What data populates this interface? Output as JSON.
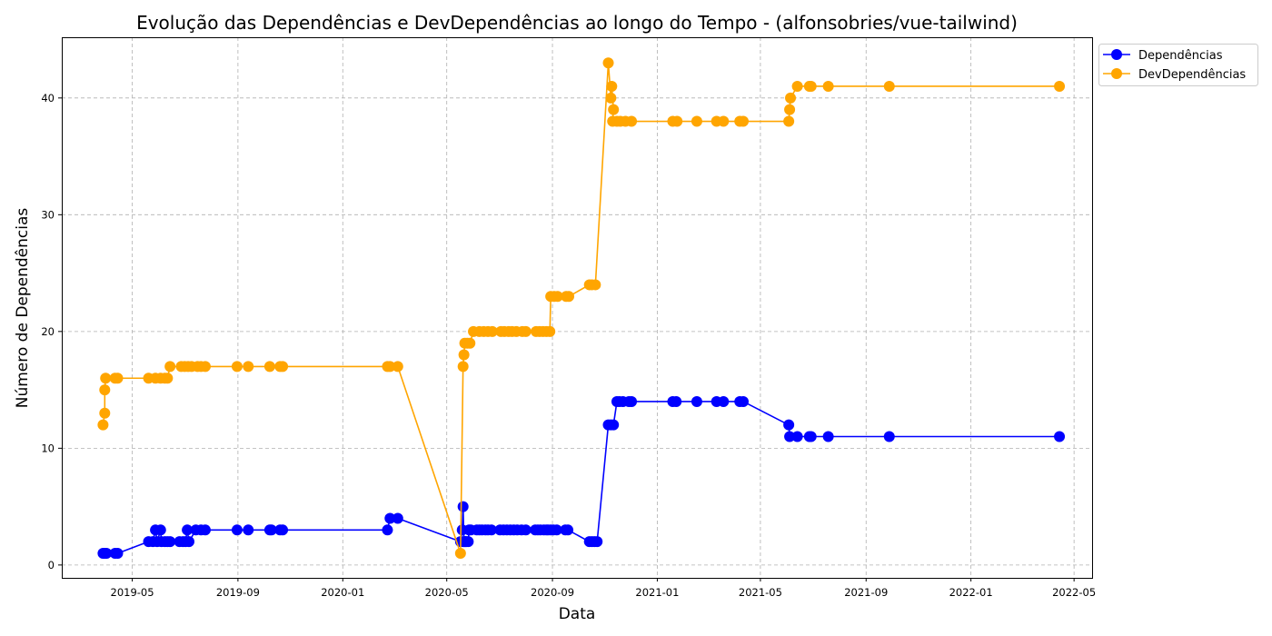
{
  "chart_data": {
    "type": "line",
    "title": "Evolução das Dependências e DevDependências ao longo do Tempo - (alfonsobries/vue-tailwind)",
    "xlabel": "Data",
    "ylabel": "Número de Dependências",
    "xlim": [
      "2019-02-08",
      "2022-05-22"
    ],
    "ylim": [
      -1.1,
      45.2
    ],
    "x_ticks": [
      "2019-05",
      "2019-09",
      "2020-01",
      "2020-05",
      "2020-09",
      "2021-01",
      "2021-05",
      "2021-09",
      "2022-01",
      "2022-05"
    ],
    "y_ticks": [
      0,
      10,
      20,
      30,
      40
    ],
    "grid": true,
    "legend": "outside-top-right",
    "series": [
      {
        "name": "Dependências",
        "color": "#0000ff",
        "points": [
          [
            "2019-03-28",
            1
          ],
          [
            "2019-03-30",
            1
          ],
          [
            "2019-04-01",
            1
          ],
          [
            "2019-04-11",
            1
          ],
          [
            "2019-04-14",
            1
          ],
          [
            "2019-05-20",
            2
          ],
          [
            "2019-05-25",
            2
          ],
          [
            "2019-05-28",
            3
          ],
          [
            "2019-05-30",
            2
          ],
          [
            "2019-06-03",
            3
          ],
          [
            "2019-06-04",
            2
          ],
          [
            "2019-06-08",
            2
          ],
          [
            "2019-06-11",
            2
          ],
          [
            "2019-06-14",
            2
          ],
          [
            "2019-06-25",
            2
          ],
          [
            "2019-06-29",
            2
          ],
          [
            "2019-07-02",
            2
          ],
          [
            "2019-07-04",
            3
          ],
          [
            "2019-07-06",
            2
          ],
          [
            "2019-07-14",
            3
          ],
          [
            "2019-07-20",
            3
          ],
          [
            "2019-07-25",
            3
          ],
          [
            "2019-08-31",
            3
          ],
          [
            "2019-09-13",
            3
          ],
          [
            "2019-10-08",
            3
          ],
          [
            "2019-10-10",
            3
          ],
          [
            "2019-10-20",
            3
          ],
          [
            "2019-10-23",
            3
          ],
          [
            "2020-02-22",
            3
          ],
          [
            "2020-02-25",
            4
          ],
          [
            "2020-03-05",
            4
          ],
          [
            "2020-05-17",
            2
          ],
          [
            "2020-05-19",
            3
          ],
          [
            "2020-05-20",
            5
          ],
          [
            "2020-05-21",
            2
          ],
          [
            "2020-05-22",
            2
          ],
          [
            "2020-05-23",
            2
          ],
          [
            "2020-05-24",
            2
          ],
          [
            "2020-05-26",
            2
          ],
          [
            "2020-05-27",
            3
          ],
          [
            "2020-05-29",
            3
          ],
          [
            "2020-06-05",
            3
          ],
          [
            "2020-06-08",
            3
          ],
          [
            "2020-06-11",
            3
          ],
          [
            "2020-06-15",
            3
          ],
          [
            "2020-06-18",
            3
          ],
          [
            "2020-06-22",
            3
          ],
          [
            "2020-07-02",
            3
          ],
          [
            "2020-07-06",
            3
          ],
          [
            "2020-07-10",
            3
          ],
          [
            "2020-07-14",
            3
          ],
          [
            "2020-07-18",
            3
          ],
          [
            "2020-07-22",
            3
          ],
          [
            "2020-07-27",
            3
          ],
          [
            "2020-08-01",
            3
          ],
          [
            "2020-08-12",
            3
          ],
          [
            "2020-08-15",
            3
          ],
          [
            "2020-08-18",
            3
          ],
          [
            "2020-08-22",
            3
          ],
          [
            "2020-08-25",
            3
          ],
          [
            "2020-08-27",
            3
          ],
          [
            "2020-08-30",
            3
          ],
          [
            "2020-09-02",
            3
          ],
          [
            "2020-09-06",
            3
          ],
          [
            "2020-09-16",
            3
          ],
          [
            "2020-09-19",
            3
          ],
          [
            "2020-10-14",
            2
          ],
          [
            "2020-10-17",
            2
          ],
          [
            "2020-10-20",
            2
          ],
          [
            "2020-10-23",
            2
          ],
          [
            "2020-11-05",
            12
          ],
          [
            "2020-11-08",
            12
          ],
          [
            "2020-11-11",
            12
          ],
          [
            "2020-11-15",
            14
          ],
          [
            "2020-11-18",
            14
          ],
          [
            "2020-11-22",
            14
          ],
          [
            "2020-11-29",
            14
          ],
          [
            "2020-12-02",
            14
          ],
          [
            "2021-01-19",
            14
          ],
          [
            "2021-01-23",
            14
          ],
          [
            "2021-02-16",
            14
          ],
          [
            "2021-03-11",
            14
          ],
          [
            "2021-03-19",
            14
          ],
          [
            "2021-04-07",
            14
          ],
          [
            "2021-04-11",
            14
          ],
          [
            "2021-06-03",
            12
          ],
          [
            "2021-06-04",
            11
          ],
          [
            "2021-06-13",
            11
          ],
          [
            "2021-06-27",
            11
          ],
          [
            "2021-06-29",
            11
          ],
          [
            "2021-07-19",
            11
          ],
          [
            "2021-09-28",
            11
          ],
          [
            "2022-04-14",
            11
          ]
        ]
      },
      {
        "name": "DevDependências",
        "color": "#ffa500",
        "points": [
          [
            "2019-03-28",
            12
          ],
          [
            "2019-03-30",
            13
          ],
          [
            "2019-03-30",
            15
          ],
          [
            "2019-03-31",
            16
          ],
          [
            "2019-04-11",
            16
          ],
          [
            "2019-04-14",
            16
          ],
          [
            "2019-05-20",
            16
          ],
          [
            "2019-05-28",
            16
          ],
          [
            "2019-06-03",
            16
          ],
          [
            "2019-06-08",
            16
          ],
          [
            "2019-06-11",
            16
          ],
          [
            "2019-06-14",
            17
          ],
          [
            "2019-06-27",
            17
          ],
          [
            "2019-07-01",
            17
          ],
          [
            "2019-07-05",
            17
          ],
          [
            "2019-07-09",
            17
          ],
          [
            "2019-07-16",
            17
          ],
          [
            "2019-07-20",
            17
          ],
          [
            "2019-07-25",
            17
          ],
          [
            "2019-08-31",
            17
          ],
          [
            "2019-09-13",
            17
          ],
          [
            "2019-10-08",
            17
          ],
          [
            "2019-10-20",
            17
          ],
          [
            "2019-10-23",
            17
          ],
          [
            "2020-02-22",
            17
          ],
          [
            "2020-02-25",
            17
          ],
          [
            "2020-03-05",
            17
          ],
          [
            "2020-05-17",
            1
          ],
          [
            "2020-05-20",
            17
          ],
          [
            "2020-05-21",
            18
          ],
          [
            "2020-05-22",
            19
          ],
          [
            "2020-05-25",
            19
          ],
          [
            "2020-05-28",
            19
          ],
          [
            "2020-06-01",
            20
          ],
          [
            "2020-06-08",
            20
          ],
          [
            "2020-06-13",
            20
          ],
          [
            "2020-06-18",
            20
          ],
          [
            "2020-06-23",
            20
          ],
          [
            "2020-07-03",
            20
          ],
          [
            "2020-07-07",
            20
          ],
          [
            "2020-07-12",
            20
          ],
          [
            "2020-07-16",
            20
          ],
          [
            "2020-07-21",
            20
          ],
          [
            "2020-07-28",
            20
          ],
          [
            "2020-08-01",
            20
          ],
          [
            "2020-08-13",
            20
          ],
          [
            "2020-08-17",
            20
          ],
          [
            "2020-08-21",
            20
          ],
          [
            "2020-08-25",
            20
          ],
          [
            "2020-08-29",
            20
          ],
          [
            "2020-08-30",
            23
          ],
          [
            "2020-09-03",
            23
          ],
          [
            "2020-09-07",
            23
          ],
          [
            "2020-09-17",
            23
          ],
          [
            "2020-09-20",
            23
          ],
          [
            "2020-10-14",
            24
          ],
          [
            "2020-10-17",
            24
          ],
          [
            "2020-10-21",
            24
          ],
          [
            "2020-11-05",
            43
          ],
          [
            "2020-11-08",
            40
          ],
          [
            "2020-11-09",
            41
          ],
          [
            "2020-11-11",
            39
          ],
          [
            "2020-11-10",
            38
          ],
          [
            "2020-11-15",
            38
          ],
          [
            "2020-11-19",
            38
          ],
          [
            "2020-11-25",
            38
          ],
          [
            "2020-12-02",
            38
          ],
          [
            "2021-01-19",
            38
          ],
          [
            "2021-01-24",
            38
          ],
          [
            "2021-02-16",
            38
          ],
          [
            "2021-03-11",
            38
          ],
          [
            "2021-03-19",
            38
          ],
          [
            "2021-04-07",
            38
          ],
          [
            "2021-04-11",
            38
          ],
          [
            "2021-06-03",
            38
          ],
          [
            "2021-06-04",
            39
          ],
          [
            "2021-06-05",
            40
          ],
          [
            "2021-06-13",
            41
          ],
          [
            "2021-06-27",
            41
          ],
          [
            "2021-06-29",
            41
          ],
          [
            "2021-07-19",
            41
          ],
          [
            "2021-09-28",
            41
          ],
          [
            "2022-04-14",
            41
          ]
        ]
      }
    ]
  }
}
